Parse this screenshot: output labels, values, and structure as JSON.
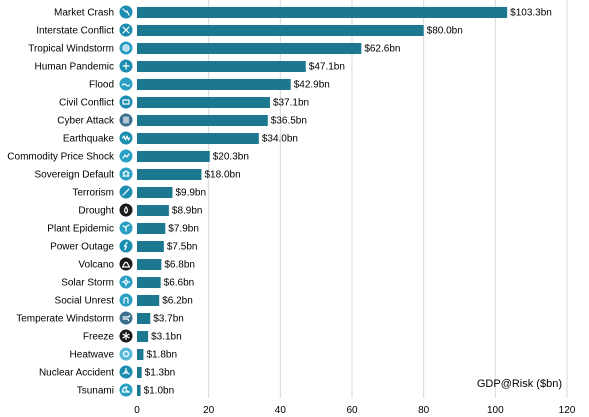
{
  "chart_data": {
    "type": "bar",
    "orientation": "horizontal",
    "categories": [
      "Market Crash",
      "Interstate Conflict",
      "Tropical Windstorm",
      "Human Pandemic",
      "Flood",
      "Civil Conflict",
      "Cyber Attack",
      "Earthquake",
      "Commodity Price Shock",
      "Sovereign Default",
      "Terrorism",
      "Drought",
      "Plant Epidemic",
      "Power Outage",
      "Volcano",
      "Solar Storm",
      "Social Unrest",
      "Temperate Windstorm",
      "Freeze",
      "Heatwave",
      "Nuclear Accident",
      "Tsunami"
    ],
    "values": [
      103.3,
      80.0,
      62.6,
      47.1,
      42.9,
      37.1,
      36.5,
      34.0,
      20.3,
      18.0,
      9.9,
      8.9,
      7.9,
      7.5,
      6.8,
      6.6,
      6.2,
      3.7,
      3.1,
      1.8,
      1.3,
      1.0
    ],
    "value_labels": [
      "$103.3bn",
      "$80.0bn",
      "$62.6bn",
      "$47.1bn",
      "$42.9bn",
      "$37.1bn",
      "$36.5bn",
      "$34.0bn",
      "$20.3bn",
      "$18.0bn",
      "$9.9bn",
      "$8.9bn",
      "$7.9bn",
      "$7.5bn",
      "$6.8bn",
      "$6.6bn",
      "$6.2bn",
      "$3.7bn",
      "$3.1bn",
      "$1.8bn",
      "$1.3bn",
      "$1.0bn"
    ],
    "icons": [
      "market-crash-icon",
      "interstate-conflict-icon",
      "tropical-windstorm-icon",
      "human-pandemic-icon",
      "flood-icon",
      "civil-conflict-icon",
      "cyber-attack-icon",
      "earthquake-icon",
      "commodity-price-shock-icon",
      "sovereign-default-icon",
      "terrorism-icon",
      "drought-icon",
      "plant-epidemic-icon",
      "power-outage-icon",
      "volcano-icon",
      "solar-storm-icon",
      "social-unrest-icon",
      "temperate-windstorm-icon",
      "freeze-icon",
      "heatwave-icon",
      "nuclear-accident-icon",
      "tsunami-icon"
    ],
    "icon_colors": [
      "#1a8db0",
      "#1a8db0",
      "#2a9fc4",
      "#1a8db0",
      "#2a9fc4",
      "#1a8db0",
      "#3a6f8f",
      "#1a8db0",
      "#2a9fc4",
      "#2a9fc4",
      "#1a8db0",
      "#1a1a1a",
      "#2a9fc4",
      "#1a8db0",
      "#1a1a1a",
      "#2a9fc4",
      "#2a9fc4",
      "#3a6f8f",
      "#1a1a1a",
      "#5ab8d8",
      "#1a8db0",
      "#2a9fc4"
    ],
    "xlabel": "GDP@Risk  ($bn)",
    "xlim": [
      0,
      120
    ],
    "xticks": [
      0,
      20,
      40,
      60,
      80,
      100,
      120
    ],
    "grid": true,
    "bar_color": "#1b788f"
  }
}
